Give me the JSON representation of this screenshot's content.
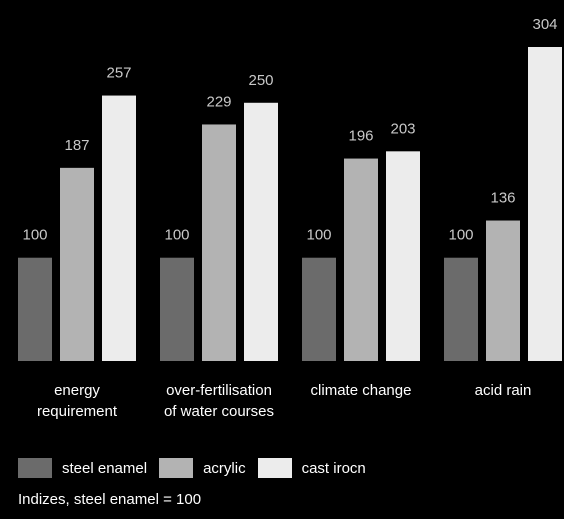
{
  "chart_data": {
    "type": "bar",
    "categories": [
      [
        "energy",
        "requirement"
      ],
      [
        "over-fertilisation",
        "of water courses"
      ],
      [
        "climate change"
      ],
      [
        "acid rain"
      ]
    ],
    "series": [
      {
        "name": "steel enamel",
        "color": "#6b6b6b",
        "values": [
          100,
          100,
          100,
          100
        ]
      },
      {
        "name": "acrylic",
        "color": "#b3b3b3",
        "values": [
          187,
          229,
          196,
          136
        ]
      },
      {
        "name": "cast irocn",
        "color": "#ececec",
        "values": [
          257,
          250,
          203,
          304
        ]
      }
    ],
    "ylim": [
      0,
      304
    ],
    "grid": false,
    "legend_position": "bottom-left",
    "note": "Indizes, steel enamel = 100"
  }
}
